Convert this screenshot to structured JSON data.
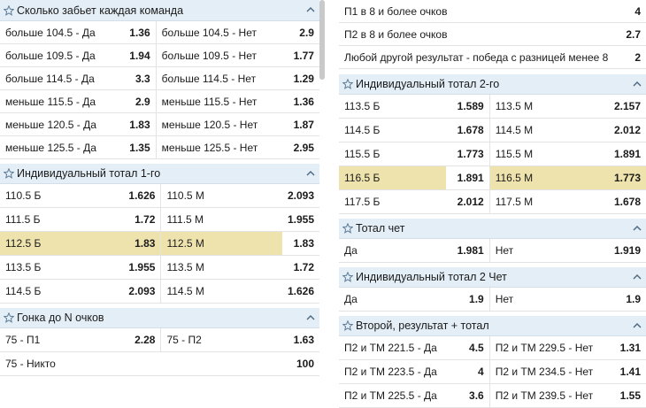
{
  "left": {
    "sections": [
      {
        "title": "Сколько забьет каждая команда",
        "rows": [
          [
            "больше 104.5 - Да",
            "1.36",
            "больше 104.5 - Нет",
            "2.9"
          ],
          [
            "больше 109.5 - Да",
            "1.94",
            "больше 109.5 - Нет",
            "1.77"
          ],
          [
            "больше 114.5 - Да",
            "3.3",
            "больше 114.5 - Нет",
            "1.29"
          ],
          [
            "меньше 115.5 - Да",
            "2.9",
            "меньше 115.5 - Нет",
            "1.36"
          ],
          [
            "меньше 120.5 - Да",
            "1.83",
            "меньше 120.5 - Нет",
            "1.87"
          ],
          [
            "меньше 125.5 - Да",
            "1.35",
            "меньше 125.5 - Нет",
            "2.95"
          ]
        ]
      },
      {
        "title": "Индивидуальный тотал 1-го",
        "rows": [
          [
            "110.5 Б",
            "1.626",
            "110.5 М",
            "2.093"
          ],
          [
            "111.5 Б",
            "1.72",
            "111.5 М",
            "1.955"
          ],
          [
            "112.5 Б",
            "1.83",
            "112.5 М",
            "1.83"
          ],
          [
            "113.5 Б",
            "1.955",
            "113.5 М",
            "1.72"
          ],
          [
            "114.5 Б",
            "2.093",
            "114.5 М",
            "1.626"
          ]
        ]
      },
      {
        "title": "Гонка до N очков",
        "rows": [
          [
            "75 - П1",
            "2.28",
            "75 - П2",
            "1.63"
          ],
          [
            "75 - Никто",
            "100"
          ]
        ]
      }
    ]
  },
  "right": {
    "top_rows": [
      [
        "П1 в 8 и более очков",
        "4"
      ],
      [
        "П2 в 8 и более очков",
        "2.7"
      ],
      [
        "Любой другой результат - победа с разницей менее 8",
        "2"
      ]
    ],
    "sections": [
      {
        "title": "Индивидуальный тотал 2-го",
        "rows": [
          [
            "113.5 Б",
            "1.589",
            "113.5 М",
            "2.157"
          ],
          [
            "114.5 Б",
            "1.678",
            "114.5 М",
            "2.012"
          ],
          [
            "115.5 Б",
            "1.773",
            "115.5 М",
            "1.891"
          ],
          [
            "116.5 Б",
            "1.891",
            "116.5 М",
            "1.773"
          ],
          [
            "117.5 Б",
            "2.012",
            "117.5 М",
            "1.678"
          ]
        ]
      },
      {
        "title": "Тотал чет",
        "rows": [
          [
            "Да",
            "1.981",
            "Нет",
            "1.919"
          ]
        ]
      },
      {
        "title": "Индивидуальный тотал 2 Чет",
        "rows": [
          [
            "Да",
            "1.9",
            "Нет",
            "1.9"
          ]
        ]
      },
      {
        "title": "Второй, результат + тотал",
        "rows": [
          [
            "П2 и ТМ 221.5 - Да",
            "4.5",
            "П2 и ТМ 229.5 - Нет",
            "1.31"
          ],
          [
            "П2 и ТМ 223.5 - Да",
            "4",
            "П2 и ТМ 234.5 - Нет",
            "1.41"
          ],
          [
            "П2 и ТМ 225.5 - Да",
            "3.6",
            "П2 и ТМ 239.5 - Нет",
            "1.55"
          ]
        ]
      }
    ]
  },
  "icons": {
    "star": "star-outline-icon",
    "chevron": "chevron-up-icon"
  },
  "colors": {
    "header_bg": "#e4eef6",
    "highlight": "#efe3ad",
    "accent": "#5d7c98"
  }
}
